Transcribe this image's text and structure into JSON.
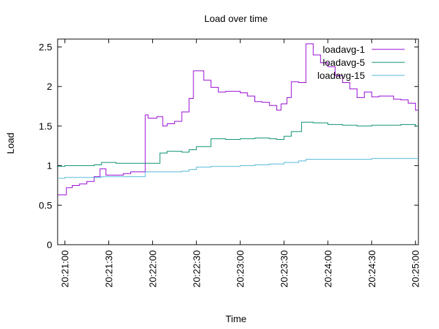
{
  "chart_data": {
    "type": "line",
    "title": "Load over time",
    "xlabel": "Time",
    "ylabel": "Load",
    "ylim": [
      0,
      2.6
    ],
    "xlim": [
      "20:20:55",
      "20:25:02"
    ],
    "x_ticks": [
      "20:21:00",
      "20:21:30",
      "20:22:00",
      "20:22:30",
      "20:23:00",
      "20:23:30",
      "20:24:00",
      "20:24:30",
      "20:25:00"
    ],
    "y_ticks": [
      0,
      0.5,
      1,
      1.5,
      2,
      2.5
    ],
    "y_tick_labels": [
      "0",
      "0.5",
      "1",
      "1.5",
      "2",
      "2.5"
    ],
    "grid": false,
    "legend": "top-right",
    "series": [
      {
        "name": "loadavg-1",
        "color": "#9400d3",
        "step": true,
        "x": [
          "20:20:55",
          "20:21:01",
          "20:21:05",
          "20:21:10",
          "20:21:15",
          "20:21:20",
          "20:21:24",
          "20:21:28",
          "20:21:35",
          "20:21:40",
          "20:21:45",
          "20:21:50",
          "20:21:55",
          "20:21:57",
          "20:22:03",
          "20:22:07",
          "20:22:10",
          "20:22:15",
          "20:22:20",
          "20:22:25",
          "20:22:28",
          "20:22:35",
          "20:22:40",
          "20:22:45",
          "20:22:50",
          "20:23:00",
          "20:23:05",
          "20:23:10",
          "20:23:15",
          "20:23:20",
          "20:23:25",
          "20:23:28",
          "20:23:32",
          "20:23:35",
          "20:23:40",
          "20:23:45",
          "20:23:50",
          "20:23:55",
          "20:24:00",
          "20:24:05",
          "20:24:10",
          "20:24:15",
          "20:24:20",
          "20:24:25",
          "20:24:30",
          "20:24:35",
          "20:24:40",
          "20:24:45",
          "20:24:50",
          "20:24:55",
          "20:25:00"
        ],
        "values": [
          0.63,
          0.72,
          0.75,
          0.77,
          0.8,
          0.86,
          0.96,
          0.88,
          0.88,
          0.9,
          0.92,
          0.92,
          1.64,
          1.6,
          1.62,
          1.5,
          1.53,
          1.56,
          1.68,
          1.85,
          2.2,
          2.08,
          1.99,
          1.93,
          1.94,
          1.92,
          1.88,
          1.81,
          1.8,
          1.76,
          1.7,
          1.78,
          1.86,
          2.06,
          2.05,
          2.54,
          2.4,
          2.3,
          2.25,
          2.14,
          2.05,
          1.97,
          1.86,
          1.93,
          1.87,
          1.88,
          1.88,
          1.84,
          1.83,
          1.79,
          1.7
        ]
      },
      {
        "name": "loadavg-5",
        "color": "#008b6b",
        "step": true,
        "x": [
          "20:20:55",
          "20:21:00",
          "20:21:10",
          "20:21:20",
          "20:21:25",
          "20:21:35",
          "20:21:45",
          "20:21:55",
          "20:22:05",
          "20:22:10",
          "20:22:20",
          "20:22:25",
          "20:22:30",
          "20:22:40",
          "20:22:45",
          "20:22:50",
          "20:23:00",
          "20:23:10",
          "20:23:20",
          "20:23:25",
          "20:23:30",
          "20:23:35",
          "20:23:42",
          "20:23:50",
          "20:24:00",
          "20:24:10",
          "20:24:20",
          "20:24:30",
          "20:24:40",
          "20:24:50",
          "20:25:00"
        ],
        "values": [
          0.99,
          1.0,
          1.0,
          1.01,
          1.04,
          1.03,
          1.03,
          1.03,
          1.16,
          1.18,
          1.17,
          1.2,
          1.24,
          1.34,
          1.34,
          1.33,
          1.34,
          1.35,
          1.34,
          1.33,
          1.37,
          1.43,
          1.55,
          1.54,
          1.52,
          1.51,
          1.5,
          1.51,
          1.51,
          1.52,
          1.5
        ]
      },
      {
        "name": "loadavg-15",
        "color": "#4fb6d8",
        "step": true,
        "x": [
          "20:20:55",
          "20:21:00",
          "20:21:15",
          "20:21:25",
          "20:21:35",
          "20:21:50",
          "20:21:55",
          "20:22:05",
          "20:22:15",
          "20:22:20",
          "20:22:25",
          "20:22:30",
          "20:22:40",
          "20:22:50",
          "20:23:00",
          "20:23:10",
          "20:23:20",
          "20:23:30",
          "20:23:40",
          "20:23:45",
          "20:24:00",
          "20:24:15",
          "20:24:30",
          "20:24:45",
          "20:25:00"
        ],
        "values": [
          0.84,
          0.85,
          0.85,
          0.86,
          0.86,
          0.86,
          0.92,
          0.92,
          0.92,
          0.93,
          0.95,
          0.98,
          0.99,
          0.99,
          1.0,
          1.01,
          1.02,
          1.04,
          1.06,
          1.08,
          1.08,
          1.08,
          1.09,
          1.09,
          1.09
        ]
      }
    ]
  }
}
